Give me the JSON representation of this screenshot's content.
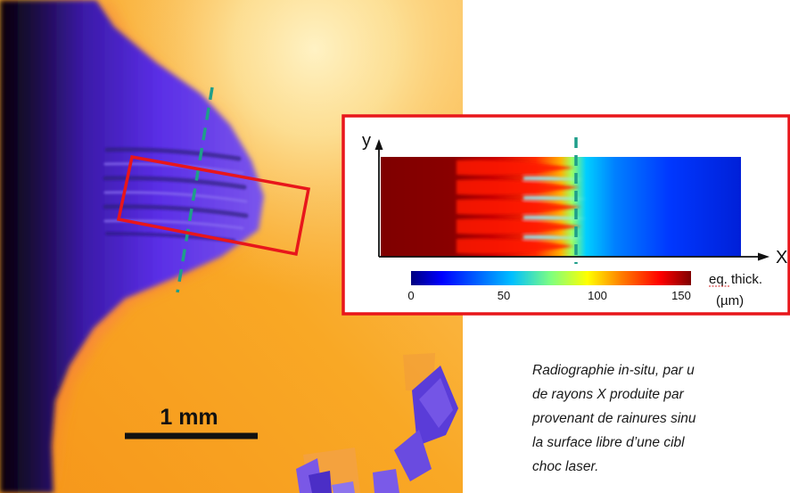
{
  "scale_bar": {
    "label": "1 mm"
  },
  "inset": {
    "axis_y": "y",
    "axis_x": "X",
    "colorbar_ticks": [
      "0",
      "50",
      "100",
      "150"
    ],
    "colorbar_label_line1": "eq. thick.",
    "colorbar_label_line2": "(µm)",
    "colormap": [
      "#00007f",
      "#0000ff",
      "#00bfff",
      "#7fff7f",
      "#ffff00",
      "#ff7f00",
      "#ff0000",
      "#7f0000"
    ]
  },
  "caption": {
    "lines": [
      "Radiographie in-situ, par u",
      "de rayons X produite par",
      "provenant de rainures sinu",
      "la surface libre d’une cibl",
      "choc laser."
    ]
  },
  "colors": {
    "frame_red": "#e8161b",
    "guide_line": "#1f9e8a",
    "background_orange": "#f8a51c",
    "highlight_yellow": "#fde9a6",
    "shadow_blue": "#4a1fd6"
  }
}
